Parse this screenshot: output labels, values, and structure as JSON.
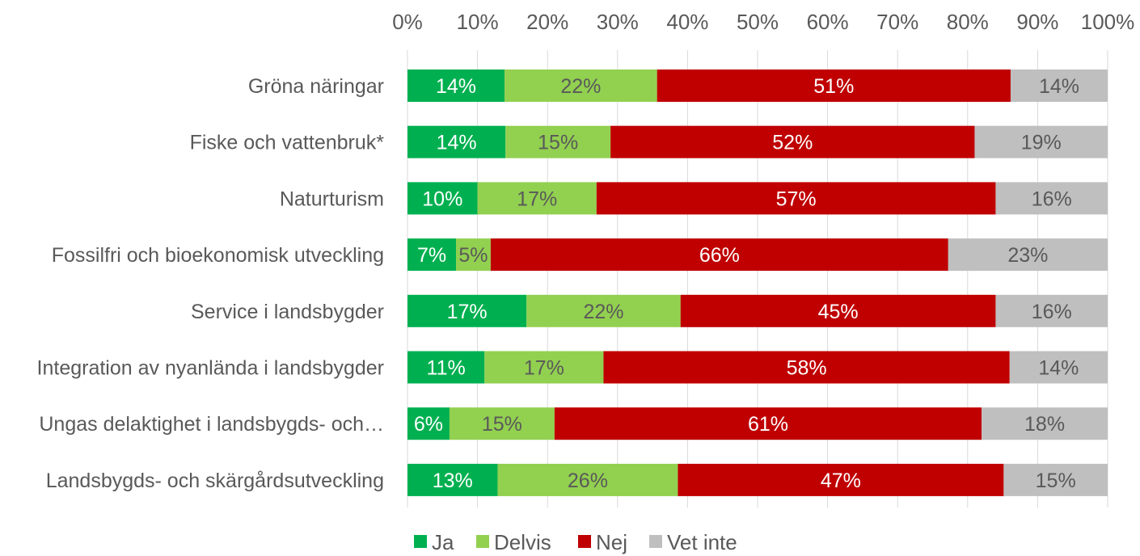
{
  "chart_data": {
    "type": "bar",
    "orientation": "horizontal",
    "stacked": "percent",
    "categories": [
      "Gröna näringar",
      "Fiske och vattenbruk*",
      "Naturturism",
      "Fossilfri och bioekonomisk utveckling",
      "Service i landsbygder",
      "Integration av nyanlända i landsbygder",
      "Ungas delaktighet i landsbygds- och…",
      "Landsbygds- och skärgårdsutveckling"
    ],
    "series": [
      {
        "name": "Ja",
        "color": "#00b050",
        "label_color": "#ffffff",
        "values": [
          14,
          14,
          10,
          7,
          17,
          11,
          6,
          13
        ],
        "labels": [
          "14%",
          "14%",
          "10%",
          "7%",
          "17%",
          "11%",
          "6%",
          "13%"
        ]
      },
      {
        "name": "Delvis",
        "color": "#92d050",
        "label_color": "#595959",
        "values": [
          22,
          15,
          17,
          5,
          22,
          17,
          15,
          26
        ],
        "labels": [
          "22%",
          "15%",
          "17%",
          "5%",
          "22%",
          "17%",
          "15%",
          "26%"
        ]
      },
      {
        "name": "Nej",
        "color": "#c00000",
        "label_color": "#ffffff",
        "values": [
          51,
          52,
          57,
          66,
          45,
          58,
          61,
          47
        ],
        "labels": [
          "51%",
          "52%",
          "57%",
          "66%",
          "45%",
          "58%",
          "61%",
          "47%"
        ]
      },
      {
        "name": "Vet inte",
        "color": "#bfbfbf",
        "label_color": "#595959",
        "values": [
          14,
          19,
          16,
          23,
          16,
          14,
          18,
          15
        ],
        "labels": [
          "14%",
          "19%",
          "16%",
          "23%",
          "16%",
          "14%",
          "18%",
          "15%"
        ]
      }
    ],
    "x_ticks": [
      "0%",
      "10%",
      "20%",
      "30%",
      "40%",
      "50%",
      "60%",
      "70%",
      "80%",
      "90%",
      "100%"
    ],
    "xlim": [
      0,
      100
    ],
    "x_axis_position": "top",
    "grid": true,
    "legend": "bottom",
    "gridline_color": "#d9d9d9"
  }
}
